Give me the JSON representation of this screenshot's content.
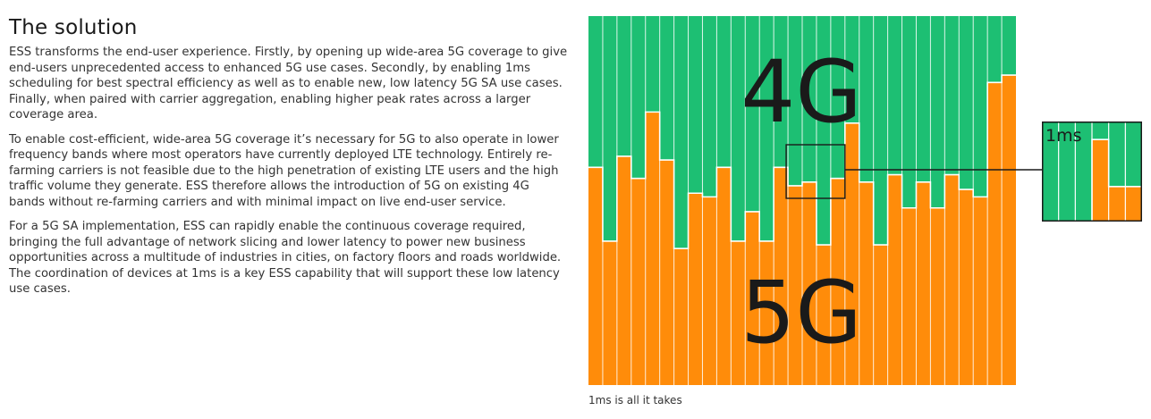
{
  "article": {
    "title": "The solution",
    "paragraphs": [
      "ESS transforms the end-user experience. Firstly, by opening up wide-area 5G coverage to give end-users unprecedented access to enhanced 5G use cases. Secondly, by enabling 1ms scheduling  for best spectral efficiency as well as to enable new, low latency 5G SA use cases. Finally, when paired with carrier aggregation, enabling higher peak rates across a larger coverage area.",
      "To enable cost-efficient, wide-area 5G coverage it’s necessary for 5G to also operate in lower frequency bands where most operators have currently deployed LTE technology. Entirely re-farming carriers is not feasible due to the high penetration of existing LTE users and the high traffic volume they generate. ESS therefore allows the introduction of 5G on existing 4G bands without re-farming carriers and with minimal impact on live end-user service.",
      "For a 5G SA implementation, ESS can rapidly enable the continuous coverage required, bringing the full advantage of network slicing and lower latency to power new business opportunities across a multitude of industries in cities, on factory floors and roads worldwide. The coordination of devices at 1ms is a key ESS capability that will support these low latency use cases."
    ]
  },
  "figure": {
    "label_4g": "4G",
    "label_5g": "5G",
    "zoom_label": "1ms",
    "caption": "1ms is all it takes",
    "colors": {
      "lte": "#1dbf73",
      "nr": "#ff8c0a",
      "divider": "#ffffff",
      "outline": "#1a1a1a"
    }
  },
  "chart_data": {
    "type": "area",
    "xlabel": "",
    "ylabel": "",
    "series": [
      {
        "name": "4G",
        "share": "remainder"
      },
      {
        "name": "5G",
        "values": [
          0.59,
          0.39,
          0.62,
          0.56,
          0.74,
          0.61,
          0.37,
          0.52,
          0.51,
          0.59,
          0.39,
          0.47,
          0.39,
          0.59,
          0.54,
          0.55,
          0.38,
          0.56,
          0.71,
          0.55,
          0.38,
          0.57,
          0.48,
          0.55,
          0.48,
          0.57,
          0.53,
          0.51,
          0.82,
          0.84
        ]
      }
    ],
    "ylim": [
      0,
      1
    ]
  }
}
